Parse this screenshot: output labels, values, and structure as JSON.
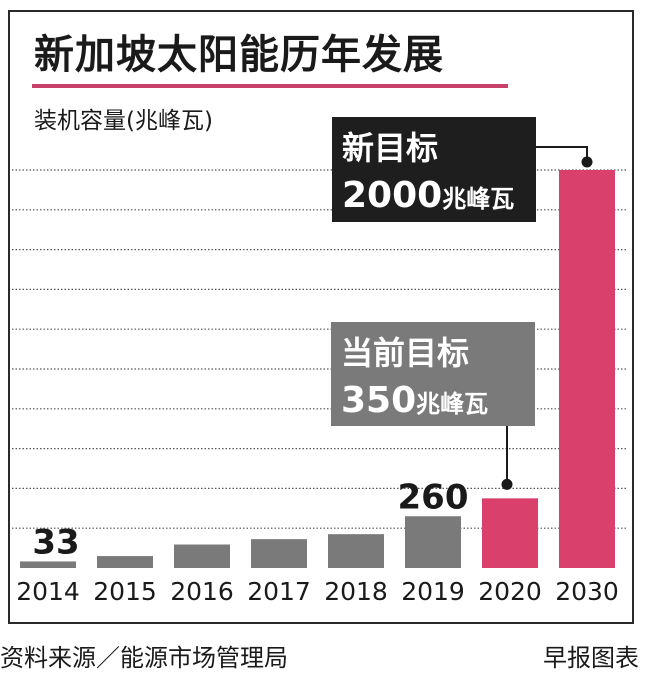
{
  "title": "新加坡太阳能历年发展",
  "unit_label": "装机容量(兆峰瓦)",
  "source": "资料来源／能源市场管理局",
  "brand": "早报图表",
  "colors": {
    "gray": "#7a7a7a",
    "accent": "#d9416c",
    "title_rule": "#c9416a",
    "callout_dark": "#1e1e1e",
    "callout_gray": "#7a7a7a"
  },
  "chart_data": {
    "type": "bar",
    "categories": [
      "2014",
      "2015",
      "2016",
      "2017",
      "2018",
      "2019",
      "2020",
      "2030"
    ],
    "values": [
      33,
      60,
      118,
      145,
      170,
      260,
      350,
      2000
    ],
    "highlight": [
      "2020",
      "2030"
    ],
    "data_labels": {
      "2014": "33",
      "2019": "260"
    },
    "ylabel": "装机容量(兆峰瓦)",
    "ylim": [
      0,
      2200
    ],
    "grid": true,
    "annotations": [
      {
        "target": "2030",
        "line1": "新目标",
        "line2_number": "2000",
        "line2_unit": "兆峰瓦",
        "style": "dark"
      },
      {
        "target": "2020",
        "line1": "当前目标",
        "line2_number": "350",
        "line2_unit": "兆峰瓦",
        "style": "gray"
      }
    ]
  }
}
